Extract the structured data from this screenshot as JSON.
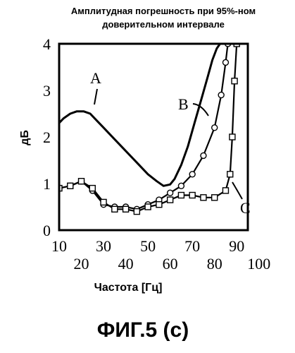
{
  "chart_data": {
    "type": "line",
    "title_lines": [
      "Амплитудная погрешность при 95%-ном",
      "доверительном интервале"
    ],
    "xlabel": "Частота [Гц]",
    "ylabel": "дБ",
    "caption": "ФИГ.5 (с)",
    "xlim": [
      10,
      95
    ],
    "ylim": [
      0,
      4
    ],
    "x_ticks_upper": [
      "10",
      "30",
      "50",
      "70",
      "90"
    ],
    "x_ticks_lower": [
      "20",
      "40",
      "60",
      "80",
      "100"
    ],
    "y_ticks": [
      "0",
      "1",
      "2",
      "3",
      "4"
    ],
    "series": [
      {
        "name": "A",
        "marker": "none",
        "x": [
          10,
          12,
          15,
          18,
          21,
          24,
          27,
          30,
          35,
          40,
          45,
          50,
          54,
          57,
          60,
          62,
          65,
          68,
          71,
          74,
          77,
          79,
          81,
          82.5
        ],
        "y": [
          2.3,
          2.4,
          2.5,
          2.55,
          2.55,
          2.5,
          2.35,
          2.2,
          1.95,
          1.7,
          1.45,
          1.2,
          1.05,
          0.95,
          0.98,
          1.1,
          1.4,
          1.8,
          2.3,
          2.8,
          3.3,
          3.65,
          3.9,
          4.0
        ]
      },
      {
        "name": "B",
        "marker": "circle",
        "x": [
          10,
          15,
          20,
          25,
          30,
          35,
          40,
          45,
          50,
          55,
          60,
          65,
          70,
          75,
          80,
          83,
          85,
          86
        ],
        "y": [
          0.9,
          0.95,
          1.05,
          0.85,
          0.55,
          0.5,
          0.5,
          0.45,
          0.55,
          0.65,
          0.8,
          0.95,
          1.2,
          1.6,
          2.2,
          2.9,
          3.6,
          4.0
        ]
      },
      {
        "name": "C",
        "marker": "square",
        "x": [
          10,
          15,
          20,
          25,
          30,
          35,
          40,
          45,
          50,
          55,
          60,
          65,
          70,
          75,
          80,
          85,
          87,
          88,
          89,
          90
        ],
        "y": [
          0.9,
          0.95,
          1.05,
          0.9,
          0.6,
          0.45,
          0.45,
          0.4,
          0.5,
          0.55,
          0.65,
          0.75,
          0.75,
          0.7,
          0.7,
          0.85,
          1.2,
          2.0,
          3.2,
          4.0
        ]
      }
    ]
  }
}
